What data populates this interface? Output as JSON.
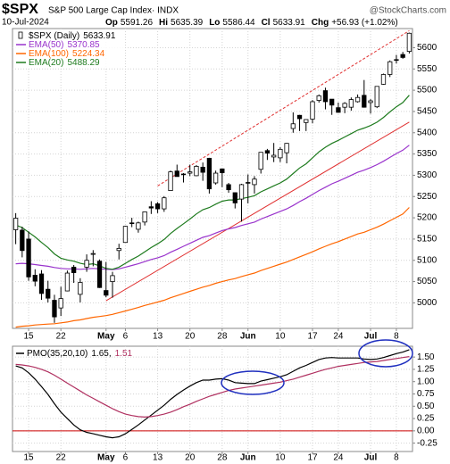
{
  "chart_data": [
    {
      "type": "candlestick",
      "title": "$SPX",
      "subtitle": "S&P 500 Large Cap Index· INDX",
      "credit": "@StockCharts.com",
      "quote": {
        "date": "10-Jul-2024",
        "items": [
          {
            "label": "Op",
            "value": 5591.26
          },
          {
            "label": "Hi",
            "value": 5635.39
          },
          {
            "label": "Lo",
            "value": 5586.44
          },
          {
            "label": "Cl",
            "value": 5633.91
          },
          {
            "label": "Chg",
            "value": "+56.93 (+1.02%)"
          }
        ]
      },
      "x": [
        "Apr 11",
        "Apr 12",
        "Apr 15",
        "Apr 16",
        "Apr 17",
        "Apr 18",
        "Apr 19",
        "Apr 22",
        "Apr 23",
        "Apr 24",
        "Apr 25",
        "Apr 26",
        "Apr 29",
        "Apr 30",
        "May 1",
        "May 2",
        "May 3",
        "May 6",
        "May 7",
        "May 8",
        "May 9",
        "May 10",
        "May 13",
        "May 14",
        "May 15",
        "May 16",
        "May 17",
        "May 20",
        "May 21",
        "May 22",
        "May 23",
        "May 24",
        "May 28",
        "May 29",
        "May 30",
        "May 31",
        "Jun 3",
        "Jun 4",
        "Jun 5",
        "Jun 6",
        "Jun 7",
        "Jun 10",
        "Jun 11",
        "Jun 12",
        "Jun 13",
        "Jun 14",
        "Jun 17",
        "Jun 18",
        "Jun 20",
        "Jun 21",
        "Jun 24",
        "Jun 25",
        "Jun 26",
        "Jun 27",
        "Jun 28",
        "Jul 1",
        "Jul 2",
        "Jul 3",
        "Jul 5",
        "Jul 8",
        "Jul 9",
        "Jul 10"
      ],
      "candles": {
        "name": "$SPX (Daily)",
        "last": 5633.91,
        "up_color": "#ffffff",
        "down_color": "#000000",
        "open": [
          5172,
          5171,
          5150,
          5065,
          5068,
          5032,
          5006,
          4988,
          5028,
          5084,
          5020,
          5084,
          5114,
          5098,
          5029,
          5050,
          5123,
          5142,
          5188,
          5173,
          5190,
          5226,
          5233,
          5221,
          5264,
          5310,
          5303,
          5305,
          5299,
          5319,
          5340,
          5282,
          5315,
          5278,
          5259,
          5244,
          5283,
          5278,
          5314,
          5358,
          5343,
          5341,
          5353,
          5410,
          5441,
          5424,
          5432,
          5476,
          5499,
          5479,
          5459,
          5460,
          5460,
          5473,
          5488,
          5471,
          5461,
          5514,
          5537,
          5572,
          5584,
          5591.26
        ],
        "high": [
          5211,
          5179,
          5168,
          5079,
          5077,
          5052,
          5019,
          5038,
          5076,
          5089,
          5058,
          5114,
          5124,
          5102,
          5096,
          5073,
          5139,
          5181,
          5200,
          5191,
          5215,
          5239,
          5237,
          5251,
          5311,
          5325,
          5305,
          5325,
          5324,
          5330,
          5341,
          5311,
          5315,
          5282,
          5260,
          5280,
          5302,
          5298,
          5354,
          5362,
          5376,
          5366,
          5376,
          5448,
          5442,
          5432,
          5477,
          5490,
          5506,
          5479,
          5471,
          5472,
          5483,
          5490,
          5524,
          5479,
          5509,
          5539,
          5570,
          5583,
          5590,
          5635.39
        ],
        "low": [
          5138,
          5107,
          5052,
          5039,
          5007,
          5001,
          4953,
          4969,
          5027,
          5047,
          5001,
          5073,
          5086,
          5035,
          5013,
          5012,
          5102,
          5142,
          5178,
          5165,
          5182,
          5209,
          5211,
          5214,
          5263,
          5297,
          5283,
          5298,
          5298,
          5287,
          5257,
          5278,
          5272,
          5259,
          5222,
          5191,
          5234,
          5257,
          5304,
          5336,
          5331,
          5331,
          5328,
          5400,
          5404,
          5404,
          5422,
          5471,
          5455,
          5442,
          5447,
          5446,
          5452,
          5471,
          5459,
          5445,
          5458,
          5513,
          5531,
          5563,
          5574,
          5586.44
        ],
        "close": [
          5199,
          5123,
          5061,
          5051,
          5022,
          5011,
          4967,
          5010,
          5070,
          5071,
          5048,
          5100,
          5116,
          5036,
          5018,
          5064,
          5128,
          5180,
          5187,
          5188,
          5214,
          5223,
          5221,
          5247,
          5308,
          5297,
          5303,
          5308,
          5321,
          5307,
          5268,
          5305,
          5306,
          5266,
          5235,
          5278,
          5283,
          5291,
          5354,
          5352,
          5347,
          5361,
          5375,
          5421,
          5433,
          5431,
          5473,
          5487,
          5473,
          5465,
          5448,
          5469,
          5478,
          5483,
          5460,
          5475,
          5509,
          5537,
          5567,
          5572,
          5577,
          5633.91
        ]
      },
      "series": [
        {
          "name": "EMA(50)",
          "last": 5370.85,
          "color": "#9933cc",
          "values": [
            5092,
            5093,
            5092,
            5090,
            5088,
            5086,
            5083,
            5081,
            5080,
            5080,
            5079,
            5080,
            5081,
            5080,
            5079,
            5078,
            5080,
            5084,
            5088,
            5092,
            5097,
            5102,
            5106,
            5111,
            5119,
            5126,
            5133,
            5140,
            5147,
            5154,
            5158,
            5164,
            5170,
            5174,
            5177,
            5182,
            5186,
            5190,
            5197,
            5203,
            5209,
            5215,
            5221,
            5229,
            5238,
            5246,
            5255,
            5264,
            5272,
            5280,
            5286,
            5293,
            5300,
            5307,
            5312,
            5318,
            5325,
            5333,
            5342,
            5351,
            5359,
            5370.85
          ]
        },
        {
          "name": "EMA(100)",
          "last": 5224.34,
          "color": "#ff6600",
          "values": [
            4943,
            4945,
            4946,
            4948,
            4949,
            4950,
            4951,
            4953,
            4955,
            4958,
            4960,
            4963,
            4966,
            4968,
            4970,
            4973,
            4977,
            4981,
            4985,
            4989,
            4994,
            4998,
            5002,
            5006,
            5012,
            5017,
            5022,
            5027,
            5032,
            5037,
            5041,
            5046,
            5050,
            5054,
            5057,
            5062,
            5066,
            5070,
            5076,
            5081,
            5086,
            5091,
            5096,
            5102,
            5108,
            5114,
            5120,
            5127,
            5133,
            5139,
            5144,
            5150,
            5156,
            5162,
            5166,
            5172,
            5178,
            5185,
            5193,
            5201,
            5209,
            5224.34
          ]
        },
        {
          "name": "EMA(20)",
          "last": 5488.29,
          "color": "#1e7b1e",
          "values": [
            5183,
            5177,
            5166,
            5155,
            5142,
            5130,
            5115,
            5105,
            5101,
            5098,
            5093,
            5090,
            5092,
            5087,
            5081,
            5079,
            5084,
            5093,
            5102,
            5110,
            5120,
            5130,
            5139,
            5149,
            5163,
            5175,
            5186,
            5197,
            5209,
            5219,
            5224,
            5232,
            5239,
            5242,
            5242,
            5245,
            5248,
            5252,
            5261,
            5268,
            5275,
            5282,
            5291,
            5304,
            5317,
            5327,
            5341,
            5355,
            5366,
            5375,
            5382,
            5390,
            5398,
            5406,
            5411,
            5417,
            5425,
            5436,
            5449,
            5461,
            5471,
            5488.29
          ]
        }
      ],
      "trendlines": [
        {
          "style": "dashed",
          "color": "#e03030",
          "x": [
            "May 13",
            "Jul 10"
          ],
          "y": [
            5275,
            5640
          ]
        },
        {
          "style": "solid",
          "color": "#e03030",
          "x": [
            "May 1",
            "Jul 10"
          ],
          "y": [
            5005,
            5425
          ]
        }
      ],
      "ylim": [
        4940,
        5645
      ],
      "yticks": [
        5000,
        5050,
        5100,
        5150,
        5200,
        5250,
        5300,
        5350,
        5400,
        5450,
        5500,
        5550,
        5600
      ],
      "xticks": [
        {
          "value": "Apr 15",
          "label": "15"
        },
        {
          "value": "Apr 22",
          "label": "22"
        },
        {
          "value": "May 1",
          "label": "May"
        },
        {
          "value": "May 6",
          "label": "6"
        },
        {
          "value": "May 13",
          "label": "13"
        },
        {
          "value": "May 20",
          "label": "20"
        },
        {
          "value": "May 28",
          "label": "28"
        },
        {
          "value": "Jun 3",
          "label": "Jun"
        },
        {
          "value": "Jun 10",
          "label": "10"
        },
        {
          "value": "Jun 17",
          "label": "17"
        },
        {
          "value": "Jun 24",
          "label": "24"
        },
        {
          "value": "Jul 1",
          "label": "Jul"
        },
        {
          "value": "Jul 8",
          "label": "8"
        }
      ],
      "grid": true
    },
    {
      "type": "line",
      "label": "PMO(35,20,10)",
      "x": [
        "Apr 11",
        "Apr 12",
        "Apr 15",
        "Apr 16",
        "Apr 17",
        "Apr 18",
        "Apr 19",
        "Apr 22",
        "Apr 23",
        "Apr 24",
        "Apr 25",
        "Apr 26",
        "Apr 29",
        "Apr 30",
        "May 1",
        "May 2",
        "May 3",
        "May 6",
        "May 7",
        "May 8",
        "May 9",
        "May 10",
        "May 13",
        "May 14",
        "May 15",
        "May 16",
        "May 17",
        "May 20",
        "May 21",
        "May 22",
        "May 23",
        "May 24",
        "May 28",
        "May 29",
        "May 30",
        "May 31",
        "Jun 3",
        "Jun 4",
        "Jun 5",
        "Jun 6",
        "Jun 7",
        "Jun 10",
        "Jun 11",
        "Jun 12",
        "Jun 13",
        "Jun 14",
        "Jun 17",
        "Jun 18",
        "Jun 20",
        "Jun 21",
        "Jun 24",
        "Jun 25",
        "Jun 26",
        "Jun 27",
        "Jun 28",
        "Jul 1",
        "Jul 2",
        "Jul 3",
        "Jul 5",
        "Jul 8",
        "Jul 9",
        "Jul 10"
      ],
      "series": [
        {
          "name": "PMO",
          "last": 1.65,
          "last_label": "1.65,",
          "color": "#000000",
          "values": [
            1.32,
            1.28,
            1.18,
            1.05,
            0.9,
            0.74,
            0.55,
            0.38,
            0.25,
            0.12,
            0.02,
            -0.03,
            -0.06,
            -0.09,
            -0.12,
            -0.14,
            -0.12,
            -0.06,
            0.03,
            0.12,
            0.22,
            0.32,
            0.42,
            0.52,
            0.64,
            0.74,
            0.83,
            0.91,
            0.98,
            1.03,
            1.03,
            1.05,
            1.06,
            1.03,
            0.98,
            0.97,
            0.96,
            0.96,
            1.01,
            1.04,
            1.07,
            1.1,
            1.14,
            1.21,
            1.28,
            1.33,
            1.39,
            1.45,
            1.48,
            1.49,
            1.48,
            1.48,
            1.48,
            1.48,
            1.46,
            1.45,
            1.46,
            1.49,
            1.53,
            1.57,
            1.6,
            1.65
          ]
        },
        {
          "name": "Signal",
          "last": 1.51,
          "color": "#b03060",
          "values": [
            1.35,
            1.34,
            1.32,
            1.29,
            1.25,
            1.2,
            1.13,
            1.05,
            0.97,
            0.89,
            0.81,
            0.73,
            0.66,
            0.59,
            0.52,
            0.45,
            0.39,
            0.34,
            0.31,
            0.29,
            0.28,
            0.29,
            0.31,
            0.34,
            0.38,
            0.43,
            0.49,
            0.54,
            0.6,
            0.65,
            0.7,
            0.74,
            0.78,
            0.82,
            0.85,
            0.87,
            0.89,
            0.91,
            0.93,
            0.95,
            0.97,
            0.99,
            1.02,
            1.05,
            1.09,
            1.13,
            1.17,
            1.21,
            1.25,
            1.28,
            1.31,
            1.33,
            1.35,
            1.37,
            1.39,
            1.4,
            1.41,
            1.43,
            1.45,
            1.47,
            1.49,
            1.51
          ]
        }
      ],
      "ylim": [
        -0.42,
        1.72
      ],
      "yticks": [
        {
          "value": 1.5,
          "label": "1.50"
        },
        {
          "value": 1.25,
          "label": "1.25"
        },
        {
          "value": 1,
          "label": "1.00"
        },
        {
          "value": 0.75,
          "label": "0.75"
        },
        {
          "value": 0.5,
          "label": "0.50"
        },
        {
          "value": 0.25,
          "label": "0.25"
        },
        {
          "value": 0,
          "label": "0.00"
        },
        {
          "value": -0.25,
          "label": "-0.25"
        }
      ],
      "xticks": [
        {
          "value": "Apr 15",
          "label": "15"
        },
        {
          "value": "Apr 22",
          "label": "22"
        },
        {
          "value": "May 1",
          "label": "May"
        },
        {
          "value": "May 6",
          "label": "6"
        },
        {
          "value": "May 13",
          "label": "13"
        },
        {
          "value": "May 20",
          "label": "20"
        },
        {
          "value": "May 28",
          "label": "28"
        },
        {
          "value": "Jun 3",
          "label": "Jun"
        },
        {
          "value": "Jun 10",
          "label": "10"
        },
        {
          "value": "Jun 17",
          "label": "17"
        },
        {
          "value": "Jun 24",
          "label": "24"
        },
        {
          "value": "Jul 1",
          "label": "Jul"
        },
        {
          "value": "Jul 8",
          "label": "8"
        }
      ],
      "zero_line": {
        "value": 0,
        "color": "#cc0000"
      },
      "grid": true
    }
  ]
}
